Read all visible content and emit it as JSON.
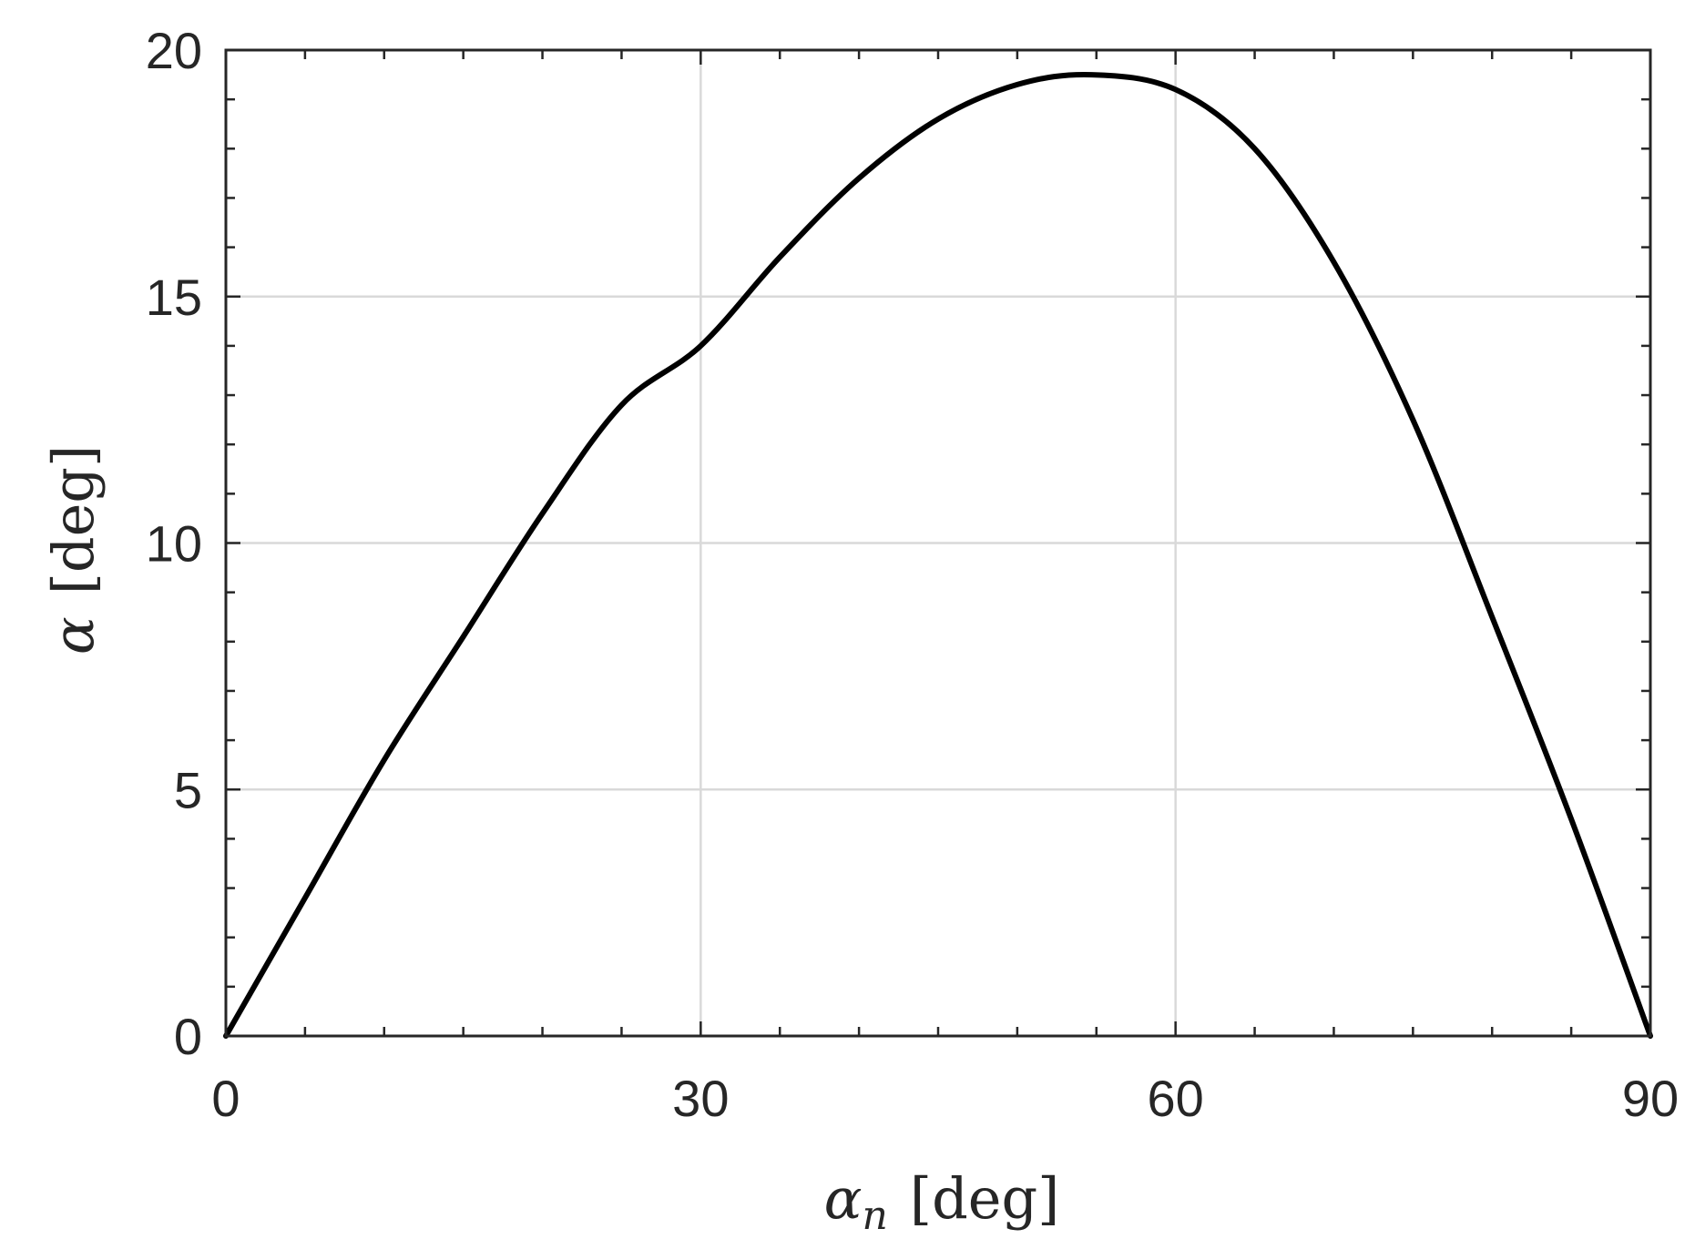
{
  "chart_data": {
    "type": "line",
    "title": "",
    "xlabel": {
      "symbol": "α",
      "subscript": "n",
      "unit": "[deg]"
    },
    "ylabel": {
      "symbol": "α",
      "unit": "[deg]"
    },
    "xlim": [
      0,
      90
    ],
    "ylim": [
      0,
      20
    ],
    "xticks": [
      0,
      30,
      60,
      90
    ],
    "yticks": [
      0,
      5,
      10,
      15,
      20
    ],
    "x_minor_step": 5,
    "y_minor_step": 1,
    "grid": true,
    "series": [
      {
        "color": "#000000",
        "x": [
          0,
          5,
          10,
          15,
          20,
          25,
          30,
          35,
          40,
          45,
          50,
          54.7,
          60,
          65,
          70,
          75,
          80,
          85,
          90
        ],
        "y": [
          0,
          2.8,
          5.6,
          8.1,
          10.6,
          12.8,
          14.0,
          15.8,
          17.4,
          18.6,
          19.3,
          19.5,
          19.2,
          18.0,
          15.7,
          12.5,
          8.5,
          4.4,
          0
        ]
      }
    ],
    "colors": {
      "axis": "#262626",
      "grid": "#d9d9d9",
      "line": "#000000"
    }
  }
}
